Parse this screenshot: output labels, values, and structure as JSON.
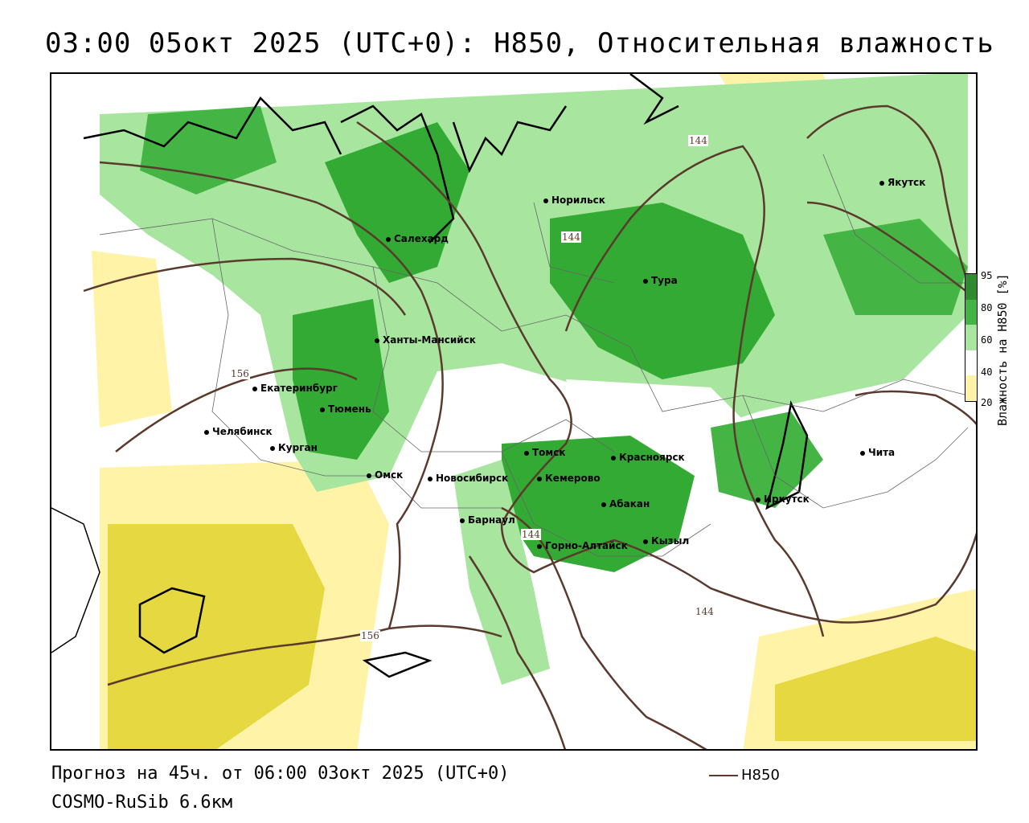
{
  "title": "03:00 05окт 2025 (UTC+0): H850, Относительная влажность",
  "footer": {
    "forecast": "Прогноз на 45ч. от 06:00 03окт 2025 (UTC+0)",
    "model": "COSMO-RuSib 6.6км",
    "line_legend": "H850"
  },
  "legend": {
    "title": "Влажность на H850 [%]",
    "ticks": [
      "95",
      "80",
      "60",
      "40",
      "20"
    ],
    "colors": [
      "#2e8b2e",
      "#44b544",
      "#a8e6a0",
      "#ffffff",
      "#fff3a8",
      "#e6d840"
    ]
  },
  "colors": {
    "contour": "#5a3a2c",
    "wet": "#33aa33",
    "moist": "#a8e6a0",
    "dry": "#fff3a8",
    "very_dry": "#e6d840"
  },
  "cities": [
    {
      "name": "Норильск"
    },
    {
      "name": "Якутск"
    },
    {
      "name": "Салехард"
    },
    {
      "name": "Тура"
    },
    {
      "name": "Ханты-Мансийск"
    },
    {
      "name": "Екатеринбург"
    },
    {
      "name": "Тюмень"
    },
    {
      "name": "Челябинск"
    },
    {
      "name": "Курган"
    },
    {
      "name": "Омск"
    },
    {
      "name": "Новосибирск"
    },
    {
      "name": "Томск"
    },
    {
      "name": "Кемерово"
    },
    {
      "name": "Красноярск"
    },
    {
      "name": "Абакан"
    },
    {
      "name": "Барнаул"
    },
    {
      "name": "Горно-Алтайск"
    },
    {
      "name": "Кызыл"
    },
    {
      "name": "Иркутск"
    },
    {
      "name": "Чита"
    }
  ],
  "contour_labels": [
    "144",
    "144",
    "156",
    "144",
    "144",
    "156"
  ]
}
